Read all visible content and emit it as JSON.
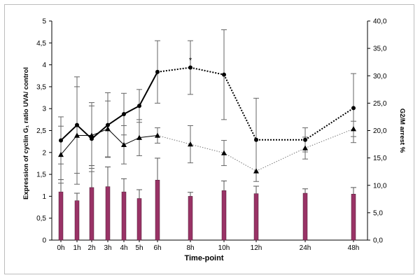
{
  "chart_data": {
    "type": "bar+line",
    "title": "",
    "xlabel": "Time-point",
    "ylabel_left": "Expression of cyclin G₁ ratio UVA/ control",
    "ylabel_right": "G2/M arrest %",
    "ylim_left": [
      0,
      5
    ],
    "ylim_right": [
      0,
      40
    ],
    "yticks_left": [
      "0",
      "0,5",
      "1",
      "1,5",
      "2",
      "2,5",
      "3",
      "3,5",
      "4",
      "4,5",
      "5"
    ],
    "yticks_right": [
      "0,0",
      "5,0",
      "10,0",
      "15,0",
      "20,0",
      "25,0",
      "30,0",
      "35,0",
      "40,0"
    ],
    "categories": [
      "0h",
      "1h",
      "2h",
      "3h",
      "4h",
      "5h",
      "6h",
      "8h",
      "10h",
      "12h",
      "24h",
      "48h"
    ],
    "hours": [
      0,
      1,
      2,
      3,
      4,
      5,
      6,
      8,
      10,
      12,
      24,
      48
    ],
    "bars": {
      "name": "Cyclin G1 expression ratio (left axis)",
      "color": "#993366",
      "values": [
        1.1,
        0.9,
        1.2,
        1.22,
        1.1,
        0.95,
        1.37,
        1.0,
        1.13,
        1.06,
        1.07,
        1.05
      ],
      "errors": [
        0.28,
        0.17,
        0.5,
        0.45,
        0.3,
        0.2,
        0.5,
        0.09,
        0.22,
        0.17,
        0.1,
        0.15
      ]
    },
    "series": [
      {
        "name": "Circles series (right axis)",
        "marker": "circle",
        "values": [
          18.2,
          21.0,
          18.5,
          21.0,
          23.0,
          24.5,
          30.7,
          31.5,
          30.2,
          18.3,
          18.3,
          24.1
        ],
        "errors": [
          4.3,
          8.8,
          6.0,
          5.9,
          3.8,
          3.0,
          5.7,
          4.9,
          8.2,
          7.6,
          2.2,
          6.3
        ]
      },
      {
        "name": "Triangles series (right axis)",
        "marker": "triangle",
        "values": [
          15.6,
          19.1,
          19.1,
          20.3,
          17.4,
          18.7,
          19.1,
          17.5,
          15.9,
          12.6,
          16.8,
          20.3
        ],
        "errors": [
          5.2,
          8.9,
          6.0,
          5.1,
          3.5,
          3.3,
          1.4,
          3.4,
          2.3,
          0.0,
          2.0,
          1.4
        ]
      }
    ],
    "annotations": [
      {
        "text": "*",
        "at": "8h"
      }
    ],
    "grid": false,
    "legend": "none"
  }
}
